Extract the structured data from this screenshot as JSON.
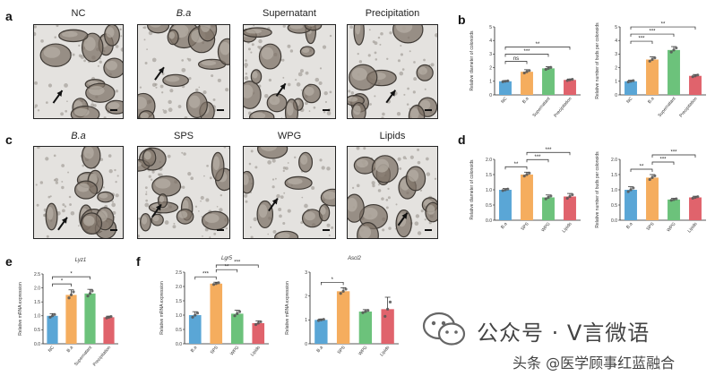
{
  "panels": {
    "a": {
      "label": "a",
      "titles": [
        "NC",
        "B.a",
        "Supernatant",
        "Precipitation"
      ]
    },
    "b": {
      "label": "b"
    },
    "c": {
      "label": "c",
      "titles": [
        "B.a",
        "SPS",
        "WPG",
        "Lipids"
      ]
    },
    "d": {
      "label": "d"
    },
    "e": {
      "label": "e"
    },
    "f": {
      "label": "f"
    }
  },
  "watermark": {
    "line1": "公众号 · V言微语",
    "line2": "头条 @医学顾事红蓝融合"
  },
  "colors": {
    "blue": "#5aa6d6",
    "orange": "#f5ad5e",
    "green": "#6cc27b",
    "red": "#e0636c"
  },
  "chart_data": [
    {
      "id": "b1",
      "type": "bar",
      "categories": [
        "NC",
        "B.a",
        "Supernatant",
        "Precipitation"
      ],
      "values": [
        1.0,
        1.7,
        1.95,
        1.1
      ],
      "errors": [
        0.05,
        0.15,
        0.12,
        0.07
      ],
      "ylabel": "Relative diameter of colonoids",
      "ylim": [
        0,
        5
      ],
      "yticks": [
        "0",
        "1",
        "2",
        "3",
        "4",
        "5"
      ],
      "sig": [
        {
          "from": 0,
          "to": 1,
          "label": "ns"
        },
        {
          "from": 0,
          "to": 2,
          "label": "***"
        },
        {
          "from": 0,
          "to": 3,
          "label": "**"
        }
      ],
      "colors": [
        "#5aa6d6",
        "#f5ad5e",
        "#6cc27b",
        "#e0636c"
      ]
    },
    {
      "id": "b2",
      "type": "bar",
      "categories": [
        "NC",
        "B.a",
        "Supernatant",
        "Precipitation"
      ],
      "values": [
        1.0,
        2.6,
        3.3,
        1.4
      ],
      "errors": [
        0.08,
        0.2,
        0.25,
        0.1
      ],
      "ylabel": "Relative number of buds per colonoids",
      "ylim": [
        0,
        5
      ],
      "yticks": [
        "0",
        "1",
        "2",
        "3",
        "4",
        "5"
      ],
      "sig": [
        {
          "from": 0,
          "to": 1,
          "label": "***"
        },
        {
          "from": 0,
          "to": 2,
          "label": "***"
        },
        {
          "from": 0,
          "to": 3,
          "label": "**"
        }
      ],
      "colors": [
        "#5aa6d6",
        "#f5ad5e",
        "#6cc27b",
        "#e0636c"
      ]
    },
    {
      "id": "d1",
      "type": "bar",
      "categories": [
        "B.a",
        "SPS",
        "WPG",
        "Lipids"
      ],
      "values": [
        1.0,
        1.5,
        0.75,
        0.78
      ],
      "errors": [
        0.04,
        0.08,
        0.08,
        0.1
      ],
      "ylabel": "Relative diameter of colonoids",
      "ylim": [
        0,
        2.0
      ],
      "yticks": [
        "0.0",
        "0.5",
        "1.0",
        "1.5",
        "2.0"
      ],
      "sig": [
        {
          "from": 0,
          "to": 1,
          "label": "**"
        },
        {
          "from": 1,
          "to": 2,
          "label": "***"
        },
        {
          "from": 1,
          "to": 3,
          "label": "***"
        }
      ],
      "colors": [
        "#5aa6d6",
        "#f5ad5e",
        "#6cc27b",
        "#e0636c"
      ]
    },
    {
      "id": "d2",
      "type": "bar",
      "categories": [
        "B.a",
        "SPS",
        "WPG",
        "Lipids"
      ],
      "values": [
        1.0,
        1.4,
        0.68,
        0.75
      ],
      "errors": [
        0.1,
        0.1,
        0.04,
        0.04
      ],
      "ylabel": "Relative number of buds per colonoids",
      "ylim": [
        0,
        2.0
      ],
      "yticks": [
        "0.0",
        "0.5",
        "1.0",
        "1.5",
        "2.0"
      ],
      "sig": [
        {
          "from": 0,
          "to": 1,
          "label": "**"
        },
        {
          "from": 1,
          "to": 2,
          "label": "***"
        },
        {
          "from": 1,
          "to": 3,
          "label": "***"
        }
      ],
      "colors": [
        "#5aa6d6",
        "#f5ad5e",
        "#6cc27b",
        "#e0636c"
      ]
    },
    {
      "id": "e1",
      "type": "bar",
      "title": "Lyz1",
      "categories": [
        "NC",
        "B.a",
        "Supernatant",
        "Precipitation"
      ],
      "values": [
        1.0,
        1.75,
        1.8,
        0.95
      ],
      "errors": [
        0.08,
        0.18,
        0.15,
        0.04
      ],
      "ylabel": "Relative mRNA expression",
      "ylim": [
        0,
        2.5
      ],
      "yticks": [
        "0.0",
        "0.5",
        "1.0",
        "1.5",
        "2.0",
        "2.5"
      ],
      "sig": [
        {
          "from": 0,
          "to": 1,
          "label": "*"
        },
        {
          "from": 0,
          "to": 2,
          "label": "*"
        }
      ],
      "colors": [
        "#5aa6d6",
        "#f5ad5e",
        "#6cc27b",
        "#e0636c"
      ]
    },
    {
      "id": "f1",
      "type": "bar",
      "title": "Lgr5",
      "categories": [
        "B.a",
        "SPS",
        "WPG",
        "Lipids"
      ],
      "values": [
        1.0,
        2.1,
        1.05,
        0.72
      ],
      "errors": [
        0.12,
        0.05,
        0.12,
        0.08
      ],
      "ylabel": "Relative mRNA expression",
      "ylim": [
        0,
        2.5
      ],
      "yticks": [
        "0.0",
        "0.5",
        "1.0",
        "1.5",
        "2.0",
        "2.5"
      ],
      "sig": [
        {
          "from": 0,
          "to": 1,
          "label": "***"
        },
        {
          "from": 1,
          "to": 2,
          "label": "**"
        },
        {
          "from": 1,
          "to": 3,
          "label": "***"
        }
      ],
      "colors": [
        "#5aa6d6",
        "#f5ad5e",
        "#6cc27b",
        "#e0636c"
      ]
    },
    {
      "id": "f2",
      "type": "bar",
      "title": "Ascl2",
      "categories": [
        "B.a",
        "SPS",
        "WPG",
        "Lipids"
      ],
      "values": [
        1.0,
        2.2,
        1.35,
        1.45
      ],
      "errors": [
        0.04,
        0.15,
        0.08,
        0.5
      ],
      "ylabel": "Relative mRNA expression",
      "ylim": [
        0,
        3
      ],
      "yticks": [
        "0",
        "1",
        "2",
        "3"
      ],
      "sig": [
        {
          "from": 0,
          "to": 1,
          "label": "*"
        }
      ],
      "colors": [
        "#5aa6d6",
        "#f5ad5e",
        "#6cc27b",
        "#e0636c"
      ]
    }
  ]
}
